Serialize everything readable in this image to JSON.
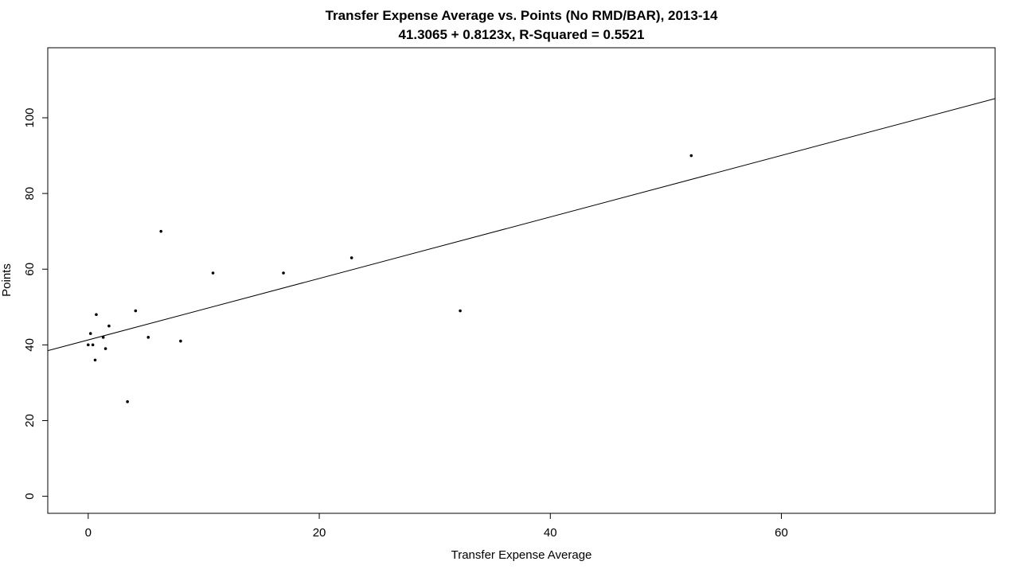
{
  "chart_data": {
    "type": "scatter",
    "title": "Transfer Expense Average vs. Points (No RMD/BAR), 2013-14",
    "subtitle": "41.3065 + 0.8123x, R-Squared = 0.5521",
    "xlabel": "Transfer Expense Average",
    "ylabel": "Points",
    "xlim": [
      -3.5,
      78.5
    ],
    "ylim": [
      -4.5,
      118.5
    ],
    "x_ticks": [
      0,
      20,
      40,
      60
    ],
    "y_ticks": [
      0,
      20,
      40,
      60,
      80,
      100
    ],
    "grid": false,
    "regression": {
      "intercept": 41.3065,
      "slope": 0.8123
    },
    "points": [
      {
        "x": 0.0,
        "y": 40
      },
      {
        "x": 0.2,
        "y": 43
      },
      {
        "x": 0.4,
        "y": 40
      },
      {
        "x": 0.6,
        "y": 36
      },
      {
        "x": 0.7,
        "y": 48
      },
      {
        "x": 1.3,
        "y": 42
      },
      {
        "x": 1.5,
        "y": 39
      },
      {
        "x": 1.8,
        "y": 45
      },
      {
        "x": 3.4,
        "y": 25
      },
      {
        "x": 4.1,
        "y": 49
      },
      {
        "x": 5.2,
        "y": 42
      },
      {
        "x": 6.3,
        "y": 70
      },
      {
        "x": 8.0,
        "y": 41
      },
      {
        "x": 10.8,
        "y": 59
      },
      {
        "x": 16.9,
        "y": 59
      },
      {
        "x": 22.8,
        "y": 63
      },
      {
        "x": 32.2,
        "y": 49
      },
      {
        "x": 52.2,
        "y": 90
      }
    ]
  }
}
